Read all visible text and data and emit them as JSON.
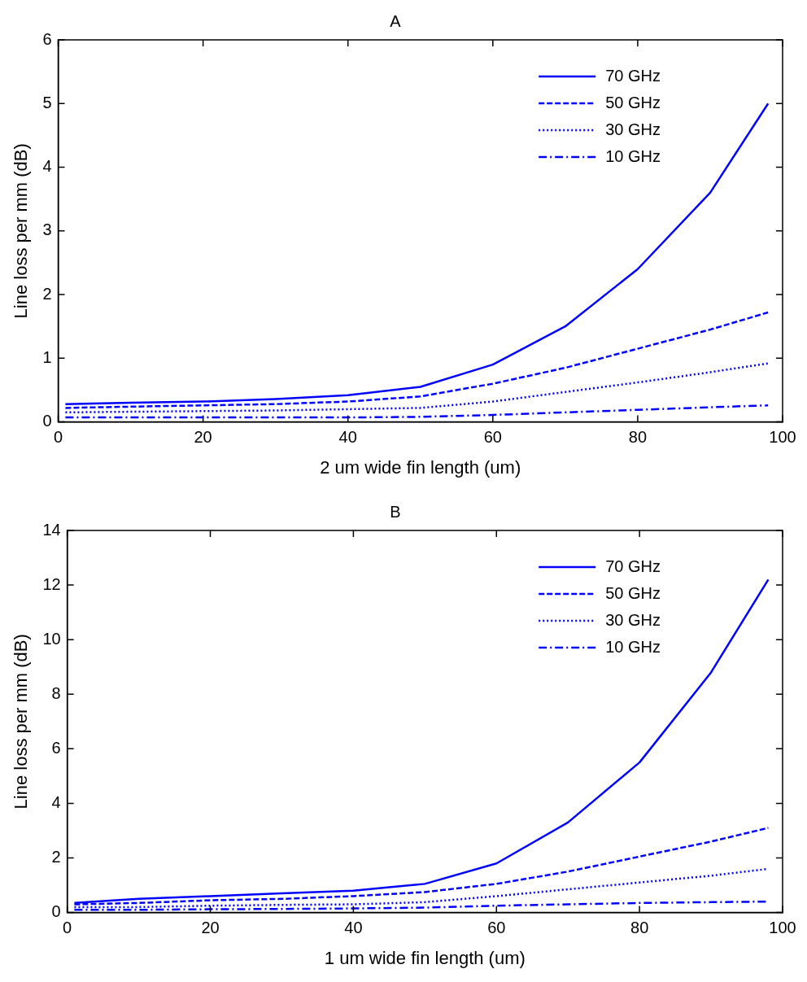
{
  "chart_data": [
    {
      "type": "line",
      "title": "A",
      "xlabel": "2 um wide fin length (um)",
      "ylabel": "Line loss per mm (dB)",
      "x": [
        1,
        10,
        20,
        30,
        40,
        50,
        60,
        70,
        80,
        90,
        98
      ],
      "xlim": [
        0,
        100
      ],
      "xticks": [
        0,
        20,
        40,
        60,
        80,
        100
      ],
      "ylim": [
        0,
        6
      ],
      "yticks": [
        0,
        1,
        2,
        3,
        4,
        5,
        6
      ],
      "grid": false,
      "legend": "top right",
      "marker": "none",
      "series": [
        {
          "name": "70 GHz",
          "color": "#0000ff",
          "line_style": "solid",
          "values": [
            0.28,
            0.3,
            0.32,
            0.36,
            0.42,
            0.55,
            0.9,
            1.5,
            2.4,
            3.6,
            5.0
          ]
        },
        {
          "name": "50 GHz",
          "color": "#0000ff",
          "line_style": "dashed",
          "values": [
            0.22,
            0.24,
            0.26,
            0.28,
            0.32,
            0.4,
            0.6,
            0.85,
            1.15,
            1.45,
            1.72
          ]
        },
        {
          "name": "30 GHz",
          "color": "#0000ff",
          "line_style": "dotted",
          "values": [
            0.15,
            0.16,
            0.17,
            0.18,
            0.2,
            0.22,
            0.32,
            0.47,
            0.62,
            0.78,
            0.92
          ]
        },
        {
          "name": "10 GHz",
          "color": "#0000ff",
          "line_style": "dashdot",
          "values": [
            0.07,
            0.07,
            0.07,
            0.07,
            0.07,
            0.08,
            0.11,
            0.15,
            0.19,
            0.23,
            0.26
          ]
        }
      ]
    },
    {
      "type": "line",
      "title": "B",
      "xlabel": "1 um wide fin length (um)",
      "ylabel": "Line loss per mm (dB)",
      "x": [
        1,
        10,
        20,
        30,
        40,
        50,
        60,
        70,
        80,
        90,
        98
      ],
      "xlim": [
        0,
        100
      ],
      "xticks": [
        0,
        20,
        40,
        60,
        80,
        100
      ],
      "ylim": [
        0,
        14
      ],
      "yticks": [
        0,
        2,
        4,
        6,
        8,
        10,
        12,
        14
      ],
      "grid": false,
      "legend": "top right",
      "marker": "none",
      "series": [
        {
          "name": "70 GHz",
          "color": "#0000ff",
          "line_style": "solid",
          "values": [
            0.35,
            0.5,
            0.6,
            0.7,
            0.8,
            1.05,
            1.8,
            3.3,
            5.5,
            8.8,
            12.2
          ]
        },
        {
          "name": "50 GHz",
          "color": "#0000ff",
          "line_style": "dashed",
          "values": [
            0.3,
            0.35,
            0.45,
            0.5,
            0.6,
            0.75,
            1.05,
            1.5,
            2.05,
            2.6,
            3.1
          ]
        },
        {
          "name": "30 GHz",
          "color": "#0000ff",
          "line_style": "dotted",
          "values": [
            0.2,
            0.2,
            0.25,
            0.28,
            0.3,
            0.38,
            0.6,
            0.85,
            1.1,
            1.35,
            1.6
          ]
        },
        {
          "name": "10 GHz",
          "color": "#0000ff",
          "line_style": "dashdot",
          "values": [
            0.1,
            0.1,
            0.12,
            0.13,
            0.15,
            0.18,
            0.25,
            0.3,
            0.35,
            0.38,
            0.4
          ]
        }
      ]
    }
  ]
}
